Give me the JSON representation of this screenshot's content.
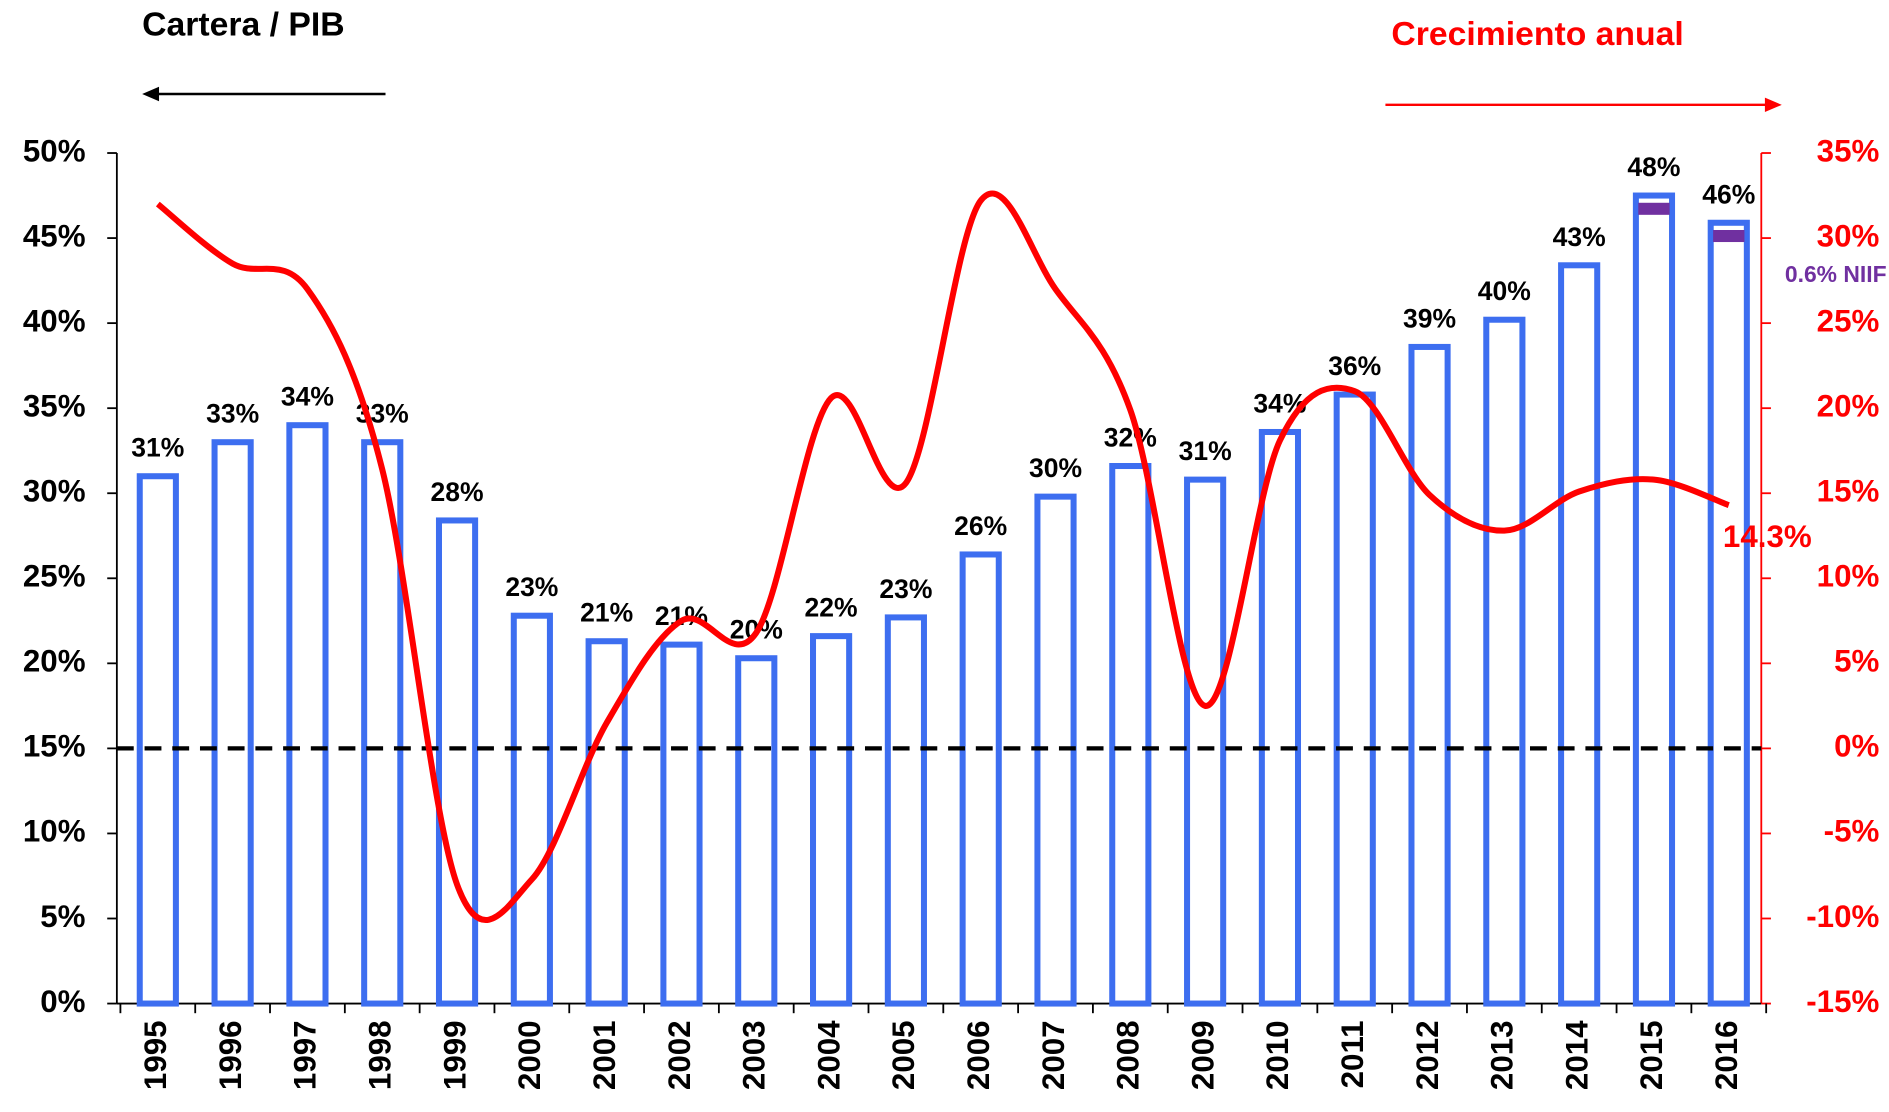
{
  "chart_data": {
    "type": "bar_line",
    "title": "Cartera / PIB",
    "y2_title": "Crecimiento anual",
    "annotation": "0.6% NIIF",
    "categories": [
      "1995",
      "1996",
      "1997",
      "1998",
      "1999",
      "2000",
      "2001",
      "2002",
      "2003",
      "2004",
      "2005",
      "2006",
      "2007",
      "2008",
      "2009",
      "2010",
      "2011",
      "2012",
      "2013",
      "2014",
      "2015",
      "2016"
    ],
    "series": [
      {
        "name": "Cartera / PIB",
        "type": "bar",
        "color": "#3d6ef0",
        "values": [
          31,
          33,
          34,
          33,
          28.4,
          22.8,
          21.3,
          21.1,
          20.3,
          21.6,
          22.7,
          26.4,
          29.8,
          31.6,
          30.8,
          33.6,
          35.8,
          38.6,
          40.2,
          43.4,
          47.5,
          45.9
        ],
        "value_labels": [
          "31%",
          "33%",
          "34%",
          "33%",
          "28%",
          "23%",
          "21%",
          "21%",
          "20%",
          "22%",
          "23%",
          "26%",
          "30%",
          "32%",
          "31%",
          "34%",
          "36%",
          "39%",
          "40%",
          "43%",
          "48%",
          "46%"
        ]
      },
      {
        "name": "Crecimiento anual",
        "type": "line",
        "color": "#ff0000",
        "axis": "y2",
        "values": [
          32,
          28.5,
          27,
          16.4,
          -8,
          -7.7,
          1.5,
          7.5,
          6.8,
          20.6,
          15.6,
          32.2,
          27,
          19.9,
          2.5,
          18.1,
          21,
          14.9,
          12.8,
          15.1,
          15.8,
          14.3
        ],
        "value_labels": [
          null,
          null,
          null,
          null,
          null,
          null,
          null,
          null,
          null,
          null,
          null,
          null,
          null,
          null,
          null,
          null,
          null,
          null,
          null,
          null,
          null,
          "14.3%"
        ]
      }
    ],
    "ylim": [
      0,
      50
    ],
    "yticks": [
      {
        "value": 0,
        "label": "0%"
      },
      {
        "value": 5,
        "label": "5%"
      },
      {
        "value": 10,
        "label": "10%"
      },
      {
        "value": 15,
        "label": "15%"
      },
      {
        "value": 20,
        "label": "20%"
      },
      {
        "value": 25,
        "label": "25%"
      },
      {
        "value": 30,
        "label": "30%"
      },
      {
        "value": 35,
        "label": "35%"
      },
      {
        "value": 40,
        "label": "40%"
      },
      {
        "value": 45,
        "label": "45%"
      },
      {
        "value": 50,
        "label": "50%"
      }
    ],
    "y2lim": [
      -15,
      35
    ],
    "y2ticks": [
      {
        "value": -15,
        "label": "-15%"
      },
      {
        "value": -10,
        "label": "-10%"
      },
      {
        "value": -5,
        "label": "-5%"
      },
      {
        "value": 0,
        "label": "0%"
      },
      {
        "value": 5,
        "label": "5%"
      },
      {
        "value": 10,
        "label": "10%"
      },
      {
        "value": 15,
        "label": "15%"
      },
      {
        "value": 20,
        "label": "20%"
      },
      {
        "value": 25,
        "label": "25%"
      },
      {
        "value": 30,
        "label": "30%"
      },
      {
        "value": 35,
        "label": "35%"
      }
    ],
    "reference_line": {
      "axis": "y2",
      "value": 0
    }
  }
}
